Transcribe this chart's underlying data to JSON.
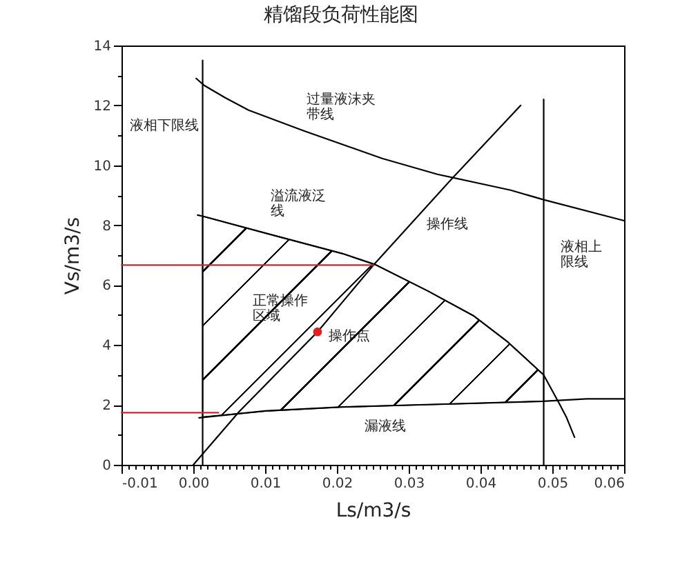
{
  "chart_data": {
    "type": "line",
    "title": "精馏段负荷性能图",
    "xlabel": "Ls/m3/s",
    "ylabel": "Vs/m3/s",
    "xlim": [
      -0.01,
      0.06
    ],
    "ylim": [
      0,
      14
    ],
    "xticks": [
      -0.01,
      {
        "value": -0.009,
        "label": null
      },
      {
        "value": -0.008,
        "label": null
      },
      {
        "value": -0.007,
        "label": null
      },
      {
        "value": -0.006,
        "label": null
      },
      {
        "value": -0.005,
        "label": null
      },
      {
        "value": -0.004,
        "label": null
      },
      {
        "value": -0.003,
        "label": null
      },
      {
        "value": -0.002,
        "label": null
      },
      {
        "value": -0.001,
        "label": null
      },
      {
        "value": 0,
        "label": "0.00"
      },
      {
        "value": 0.001,
        "label": null
      },
      {
        "value": 0.002,
        "label": null
      },
      {
        "value": 0.003,
        "label": null
      },
      {
        "value": 0.004,
        "label": null
      },
      {
        "value": 0.005,
        "label": null
      },
      {
        "value": 0.006,
        "label": null
      },
      {
        "value": 0.007,
        "label": null
      },
      {
        "value": 0.008,
        "label": null
      },
      {
        "value": 0.009,
        "label": null
      },
      0.01,
      {
        "value": 0.011,
        "label": null
      },
      {
        "value": 0.012,
        "label": null
      },
      {
        "value": 0.013,
        "label": null
      },
      {
        "value": 0.014,
        "label": null
      },
      {
        "value": 0.015,
        "label": null
      },
      {
        "value": 0.016,
        "label": null
      },
      {
        "value": 0.017,
        "label": null
      },
      {
        "value": 0.018,
        "label": null
      },
      {
        "value": 0.019,
        "label": null
      },
      0.02,
      {
        "value": 0.021,
        "label": null
      },
      {
        "value": 0.022,
        "label": null
      },
      {
        "value": 0.023,
        "label": null
      },
      {
        "value": 0.024,
        "label": null
      },
      {
        "value": 0.025,
        "label": null
      },
      {
        "value": 0.026,
        "label": null
      },
      {
        "value": 0.027,
        "label": null
      },
      {
        "value": 0.028,
        "label": null
      },
      {
        "value": 0.029,
        "label": null
      },
      0.03,
      {
        "value": 0.031,
        "label": null
      },
      {
        "value": 0.032,
        "label": null
      },
      {
        "value": 0.033,
        "label": null
      },
      {
        "value": 0.034,
        "label": null
      },
      {
        "value": 0.035,
        "label": null
      },
      {
        "value": 0.036,
        "label": null
      },
      {
        "value": 0.037,
        "label": null
      },
      {
        "value": 0.038,
        "label": null
      },
      {
        "value": 0.039,
        "label": null
      },
      0.04,
      {
        "value": 0.041,
        "label": null
      },
      {
        "value": 0.042,
        "label": null
      },
      {
        "value": 0.043,
        "label": null
      },
      {
        "value": 0.044,
        "label": null
      },
      {
        "value": 0.045,
        "label": null
      },
      {
        "value": 0.046,
        "label": null
      },
      {
        "value": 0.047,
        "label": null
      },
      {
        "value": 0.048,
        "label": null
      },
      {
        "value": 0.049,
        "label": null
      },
      0.05,
      {
        "value": 0.051,
        "label": null
      },
      {
        "value": 0.052,
        "label": null
      },
      {
        "value": 0.053,
        "label": null
      },
      {
        "value": 0.054,
        "label": null
      },
      {
        "value": 0.055,
        "label": null
      },
      {
        "value": 0.056,
        "label": null
      },
      {
        "value": 0.057,
        "label": null
      },
      {
        "value": 0.058,
        "label": null
      },
      {
        "value": 0.059,
        "label": null
      },
      0.06
    ],
    "yticks": [
      0,
      {
        "value": 1,
        "label": null
      },
      2,
      {
        "value": 3,
        "label": null
      },
      4,
      {
        "value": 5,
        "label": null
      },
      6,
      {
        "value": 7,
        "label": null
      },
      8,
      {
        "value": 9,
        "label": null
      },
      10,
      {
        "value": 11,
        "label": null
      },
      12,
      {
        "value": 13,
        "label": null
      },
      14
    ],
    "series": [
      {
        "name": "过量液沫夹带线",
        "color": "#000000",
        "x": [
          0.0004,
          0.0015,
          0.0044,
          0.0077,
          0.0154,
          0.0263,
          0.034,
          0.0442,
          0.0488,
          0.06
        ],
        "values": [
          12.9,
          12.67,
          12.26,
          11.84,
          11.15,
          10.23,
          9.7,
          9.17,
          8.85,
          8.15
        ]
      },
      {
        "name": "溢流液泛线",
        "color": "#000000",
        "x": [
          0.0006,
          0.0013,
          0.0106,
          0.0208,
          0.0254,
          0.0327,
          0.039,
          0.0438,
          0.0488,
          0.051,
          0.052,
          0.0531
        ],
        "values": [
          8.34,
          8.3,
          7.7,
          7.05,
          6.68,
          5.8,
          4.98,
          4.1,
          3.0,
          2.03,
          1.57,
          0.92
        ],
        "lower": [
          null,
          1.6,
          1.8,
          1.93,
          1.96,
          2.01,
          2.05,
          2.09,
          2.12,
          null,
          null,
          null
        ],
        "upper": [
          null,
          8.3,
          7.7,
          7.05,
          6.68,
          5.8,
          4.98,
          4.1,
          3.0,
          null,
          null,
          null
        ]
      },
      {
        "name": "漏液线",
        "color": "#000000",
        "x": [
          0.0008,
          0.01,
          0.0208,
          0.0282,
          0.0487,
          0.0548,
          0.06
        ],
        "values": [
          1.57,
          1.8,
          1.93,
          1.98,
          2.12,
          2.2,
          2.2
        ]
      },
      {
        "name": "液相下限线",
        "color": "#000000",
        "x": [
          0.0013,
          0.0013
        ],
        "values": [
          0,
          13.5
        ]
      },
      {
        "name": "液相上限线",
        "color": "#000000",
        "x": [
          0.0488,
          0.0488
        ],
        "values": [
          0,
          12.2
        ]
      },
      {
        "name": "操作线",
        "color": "#000000",
        "x": [
          0,
          0.0064,
          0.0173,
          0.0251,
          0.0362,
          0.0456
        ],
        "values": [
          0,
          1.78,
          4.44,
          6.67,
          9.6,
          12.0
        ]
      },
      {
        "color": "#e02020",
        "x": [
          -0.01,
          0.0251
        ],
        "values": [
          6.67,
          6.67
        ]
      },
      {
        "color": "#e02020",
        "x": [
          -0.01,
          0.0035
        ],
        "values": [
          1.74,
          1.74
        ]
      },
      {
        "type": "scatter",
        "name": "操作点",
        "color": "#e02020",
        "marker": "circle",
        "x": [
          0.0173
        ],
        "values": [
          4.44
        ]
      }
    ],
    "annotations": [
      "正常操作区域"
    ]
  }
}
